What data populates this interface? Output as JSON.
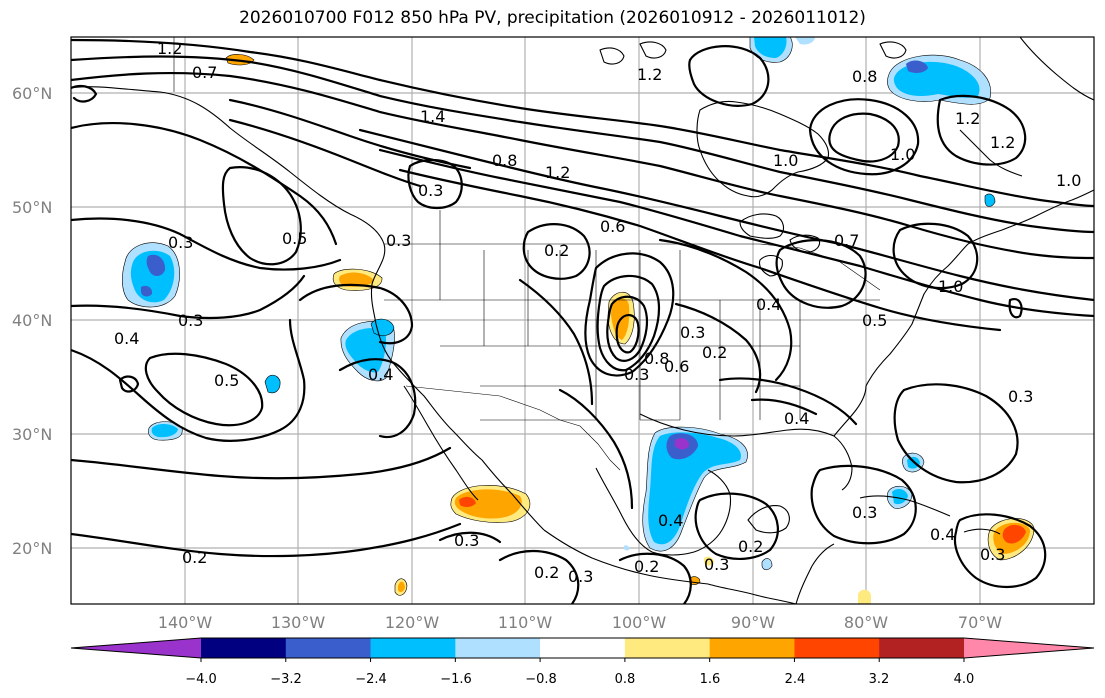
{
  "title": "2026010700 F012 850 hPa PV, precipitation (2026010912 - 2026011012)",
  "lat_labels": [
    "60°N",
    "50°N",
    "40°N",
    "30°N",
    "20°N"
  ],
  "lon_labels": [
    "140°W",
    "130°W",
    "120°W",
    "110°W",
    "100°W",
    "90°W",
    "80°W",
    "70°W"
  ],
  "colorbar": {
    "ticks": [
      "−4.0",
      "−3.2",
      "−2.4",
      "−1.6",
      "−0.8",
      "0.8",
      "1.6",
      "2.4",
      "3.2",
      "4.0"
    ],
    "colors": [
      "#9933cc",
      "#000080",
      "#3a5fcd",
      "#00bfff",
      "#b0e0ff",
      "#ffffff",
      "#ffea80",
      "#ffa500",
      "#ff4500",
      "#b22222",
      "#ff88aa"
    ]
  },
  "contour_labels": [
    "1.2",
    "0.7",
    "1.2",
    "0.3",
    "1.4",
    "1.2",
    "0.8",
    "1.2",
    "0.8",
    "1.0",
    "1.2",
    "1.0",
    "1.0",
    "0.3",
    "0.5",
    "0.3",
    "0.6",
    "0.2",
    "0.7",
    "0.3",
    "0.4",
    "1.0",
    "0.3",
    "0.4",
    "0.5",
    "0.4",
    "0.5",
    "0.3",
    "0.8",
    "0.6",
    "0.2",
    "0.4",
    "0.3",
    "0.4",
    "0.2",
    "0.3",
    "0.2",
    "0.3",
    "0.2",
    "0.3",
    "0.3",
    "0.2",
    "0.3",
    "0.4"
  ]
}
